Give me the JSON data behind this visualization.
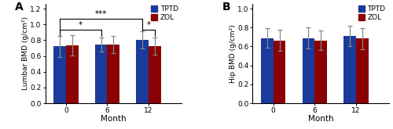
{
  "panel_A": {
    "title": "A",
    "ylabel": "Lumbar BMD (g/cm²)",
    "xlabel": "Month",
    "xtick_labels": [
      "0",
      "6",
      "12"
    ],
    "tptd_means": [
      0.72,
      0.748,
      0.8
    ],
    "tptd_errors": [
      0.13,
      0.09,
      0.11
    ],
    "zol_means": [
      0.735,
      0.743,
      0.725
    ],
    "zol_errors": [
      0.13,
      0.11,
      0.11
    ],
    "ylim": [
      0.0,
      1.26
    ],
    "yticks": [
      0.0,
      0.2,
      0.4,
      0.6,
      0.8,
      1.0,
      1.2
    ]
  },
  "panel_B": {
    "title": "B",
    "ylabel": "Hip BMD (g/cm²)",
    "xlabel": "Month",
    "xtick_labels": [
      "0",
      "6",
      "12"
    ],
    "tptd_means": [
      0.69,
      0.688,
      0.71
    ],
    "tptd_errors": [
      0.105,
      0.11,
      0.11
    ],
    "zol_means": [
      0.665,
      0.663,
      0.683
    ],
    "zol_errors": [
      0.11,
      0.105,
      0.11
    ],
    "ylim": [
      0.0,
      1.05
    ],
    "yticks": [
      0.0,
      0.2,
      0.4,
      0.6,
      0.8,
      1.0
    ]
  },
  "tptd_color": "#1a3a9c",
  "zol_color": "#8b0000",
  "bar_width": 0.3,
  "capsize": 2,
  "errorbar_color": "#888888",
  "sig_lw": 0.8,
  "sig_fs": 7.0
}
